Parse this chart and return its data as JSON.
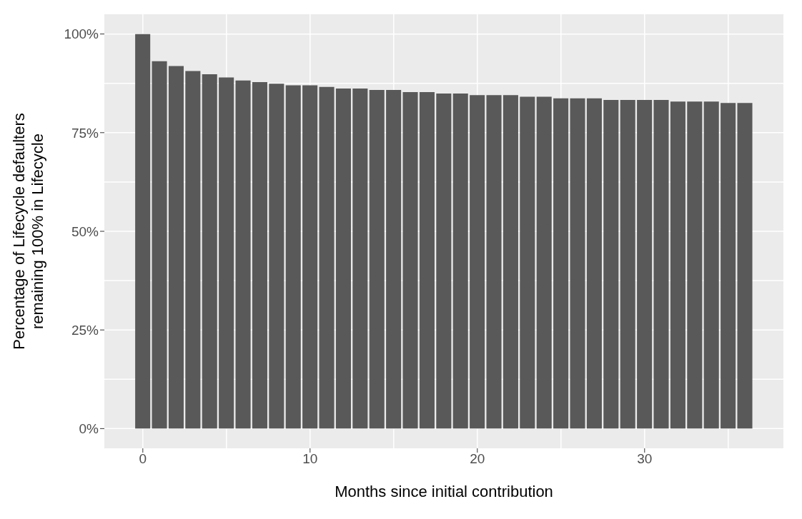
{
  "chart_data": {
    "type": "bar",
    "xlabel": "Months since initial contribution",
    "ylabel": "Percentage of Lifecycle defaulters\nremaining 100% in Lifecycle",
    "x": [
      0,
      1,
      2,
      3,
      4,
      5,
      6,
      7,
      8,
      9,
      10,
      11,
      12,
      13,
      14,
      15,
      16,
      17,
      18,
      19,
      20,
      21,
      22,
      23,
      24,
      25,
      26,
      27,
      28,
      29,
      30,
      31,
      32,
      33,
      34,
      35,
      36
    ],
    "values": [
      100,
      93.1,
      91.9,
      90.6,
      89.8,
      89.0,
      88.2,
      87.8,
      87.4,
      87.0,
      87.0,
      86.6,
      86.2,
      86.2,
      85.8,
      85.8,
      85.3,
      85.3,
      84.9,
      84.9,
      84.5,
      84.5,
      84.5,
      84.1,
      84.1,
      83.7,
      83.7,
      83.7,
      83.3,
      83.3,
      83.3,
      83.3,
      82.9,
      82.9,
      82.9,
      82.5,
      82.5
    ],
    "color": "#595959",
    "xlim": [
      -2.3,
      38.3
    ],
    "xticks": [
      0,
      10,
      20,
      30
    ],
    "ylim": [
      -5,
      105
    ],
    "yticks": [
      {
        "value": 0,
        "label": "0%"
      },
      {
        "value": 25,
        "label": "25%"
      },
      {
        "value": 50,
        "label": "50%"
      },
      {
        "value": 75,
        "label": "75%"
      },
      {
        "value": 100,
        "label": "100%"
      }
    ],
    "grid": true
  }
}
